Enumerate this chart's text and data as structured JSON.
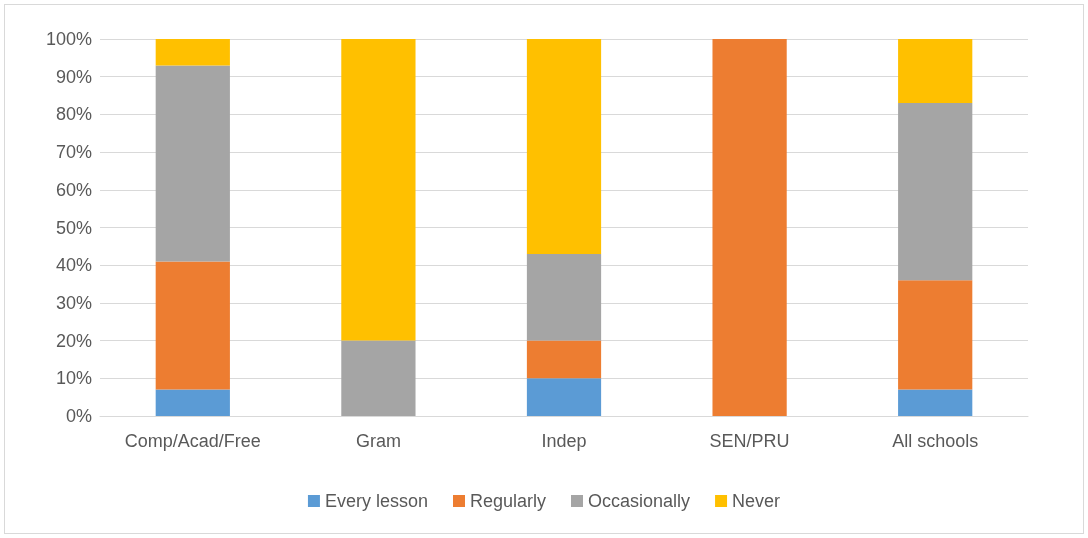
{
  "chart_data": {
    "type": "bar",
    "stacked": true,
    "categories": [
      "Comp/Acad/Free",
      "Gram",
      "Indep",
      "SEN/PRU",
      "All schools"
    ],
    "series": [
      {
        "name": "Every lesson",
        "color": "#5b9bd5",
        "values": [
          7,
          0,
          10,
          0,
          7
        ]
      },
      {
        "name": "Regularly",
        "color": "#ed7d31",
        "values": [
          34,
          0,
          10,
          100,
          29
        ]
      },
      {
        "name": "Occasionally",
        "color": "#a5a5a5",
        "values": [
          52,
          20,
          23,
          0,
          47
        ]
      },
      {
        "name": "Never",
        "color": "#ffc000",
        "values": [
          7,
          80,
          57,
          0,
          17
        ]
      }
    ],
    "ylim": [
      0,
      100
    ],
    "yticks": [
      {
        "value": 0,
        "label": "0%"
      },
      {
        "value": 10,
        "label": "10%"
      },
      {
        "value": 20,
        "label": "20%"
      },
      {
        "value": 30,
        "label": "30%"
      },
      {
        "value": 40,
        "label": "40%"
      },
      {
        "value": 50,
        "label": "50%"
      },
      {
        "value": 60,
        "label": "60%"
      },
      {
        "value": 70,
        "label": "70%"
      },
      {
        "value": 80,
        "label": "80%"
      },
      {
        "value": 90,
        "label": "90%"
      },
      {
        "value": 100,
        "label": "100%"
      }
    ],
    "grid": "y",
    "legend": "bottom"
  }
}
